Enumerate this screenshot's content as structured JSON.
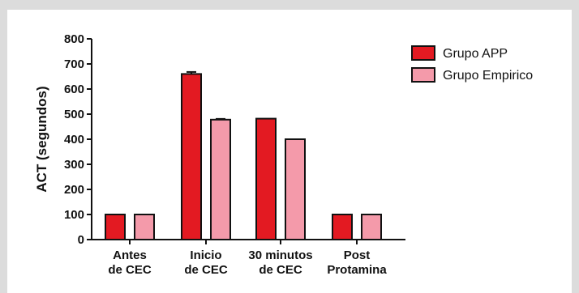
{
  "chart_data": {
    "type": "bar",
    "title": "",
    "xlabel": "",
    "ylabel": "ACT (segundos)",
    "ylim": [
      0,
      800
    ],
    "yticks": [
      0,
      100,
      200,
      300,
      400,
      500,
      600,
      700,
      800
    ],
    "grid": false,
    "legend_position": "top-right",
    "categories": [
      [
        "Antes",
        "de CEC"
      ],
      [
        "Inicio",
        "de CEC"
      ],
      [
        "30 minutos",
        "de CEC"
      ],
      [
        "Post",
        "Protamina"
      ]
    ],
    "series": [
      {
        "name": "Grupo APP",
        "color": "#e31a22",
        "values": [
          100,
          660,
          482,
          100
        ],
        "errors": [
          0,
          8,
          0,
          0
        ]
      },
      {
        "name": "Grupo Empirico",
        "color": "#f49aaa",
        "values": [
          100,
          478,
          400,
          100
        ],
        "errors": [
          0,
          3,
          0,
          0
        ]
      }
    ]
  }
}
